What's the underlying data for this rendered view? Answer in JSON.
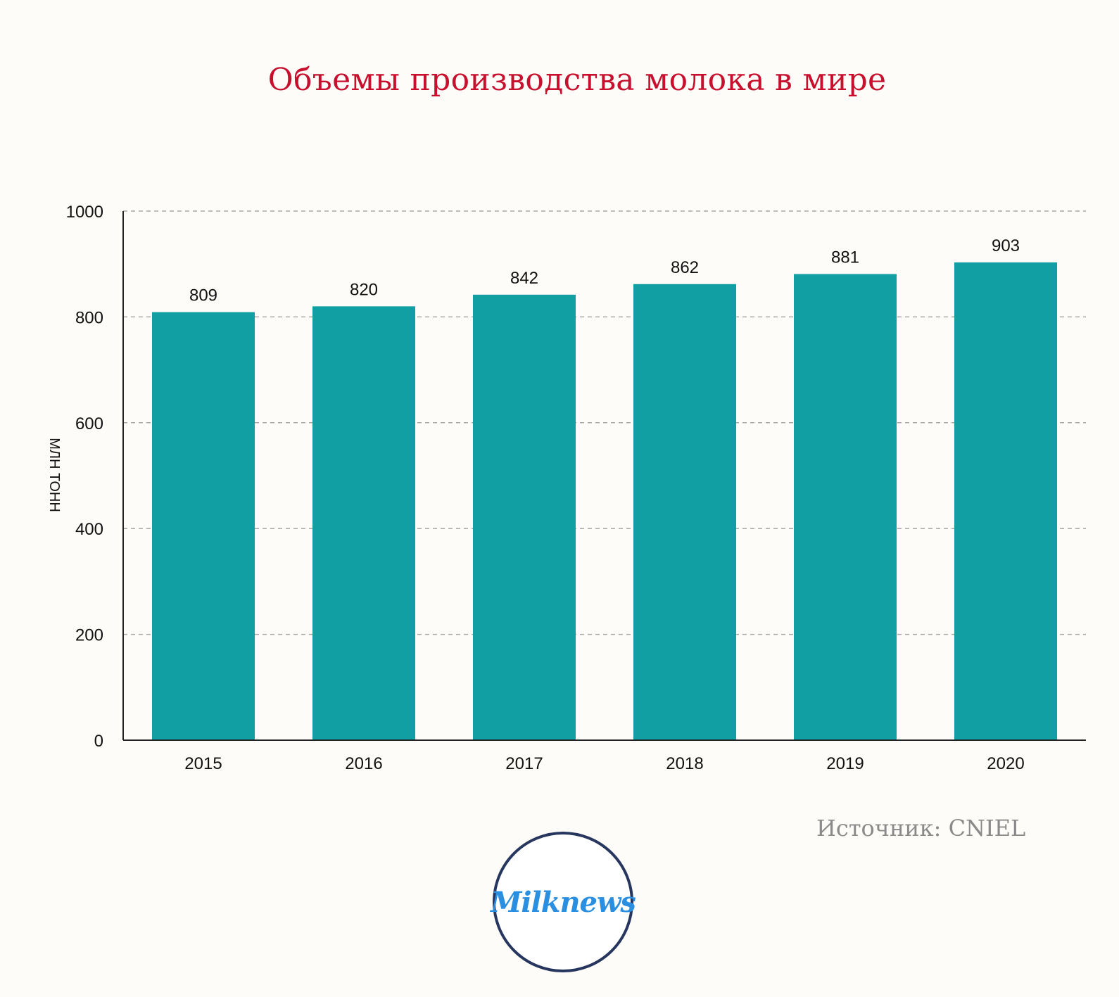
{
  "chart_data": {
    "type": "bar",
    "title": "Объемы производства молока в мире",
    "ylabel": "МЛН ТОНН",
    "xlabel": "",
    "categories": [
      "2015",
      "2016",
      "2017",
      "2018",
      "2019",
      "2020"
    ],
    "values": [
      809,
      820,
      842,
      862,
      881,
      903
    ],
    "ylim": [
      0,
      1000
    ],
    "yticks": [
      0,
      200,
      400,
      600,
      800,
      1000
    ],
    "grid": true,
    "bar_color": "#119fa4",
    "data_labels": true
  },
  "source": "Источник: CNIEL",
  "logo": {
    "text": "Milknews",
    "ring_color": "#27365e",
    "text_color": "#2a8fe0"
  }
}
